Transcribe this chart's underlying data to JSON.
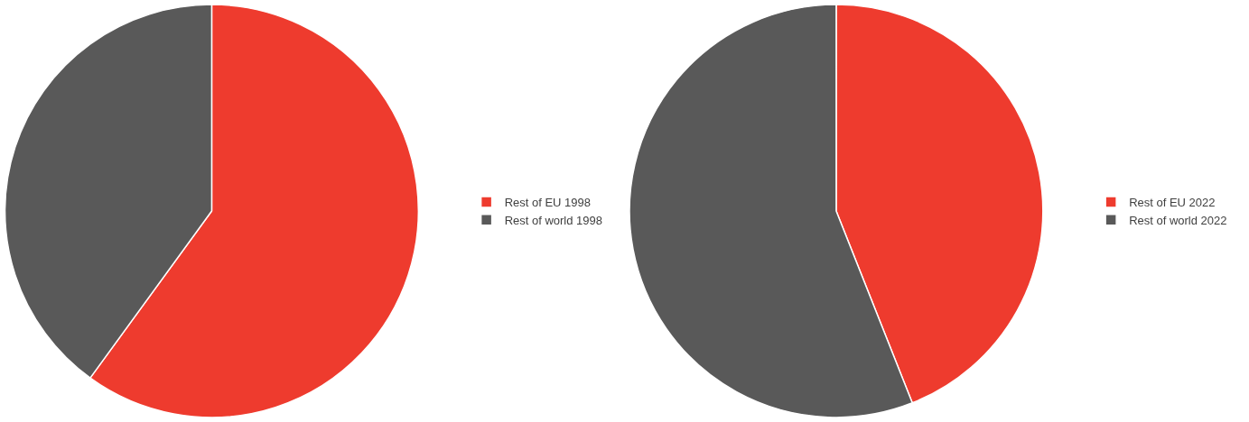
{
  "chart_data": [
    {
      "type": "pie",
      "categories": [
        "Rest of EU 1998",
        "Rest of world 1998"
      ],
      "values": [
        60,
        40
      ],
      "colors": [
        "#ee3b2e",
        "#595959"
      ],
      "legend": "right"
    },
    {
      "type": "pie",
      "categories": [
        "Rest of EU 2022",
        "Rest of world 2022"
      ],
      "values": [
        44,
        56
      ],
      "colors": [
        "#ee3b2e",
        "#595959"
      ],
      "legend": "right"
    }
  ]
}
